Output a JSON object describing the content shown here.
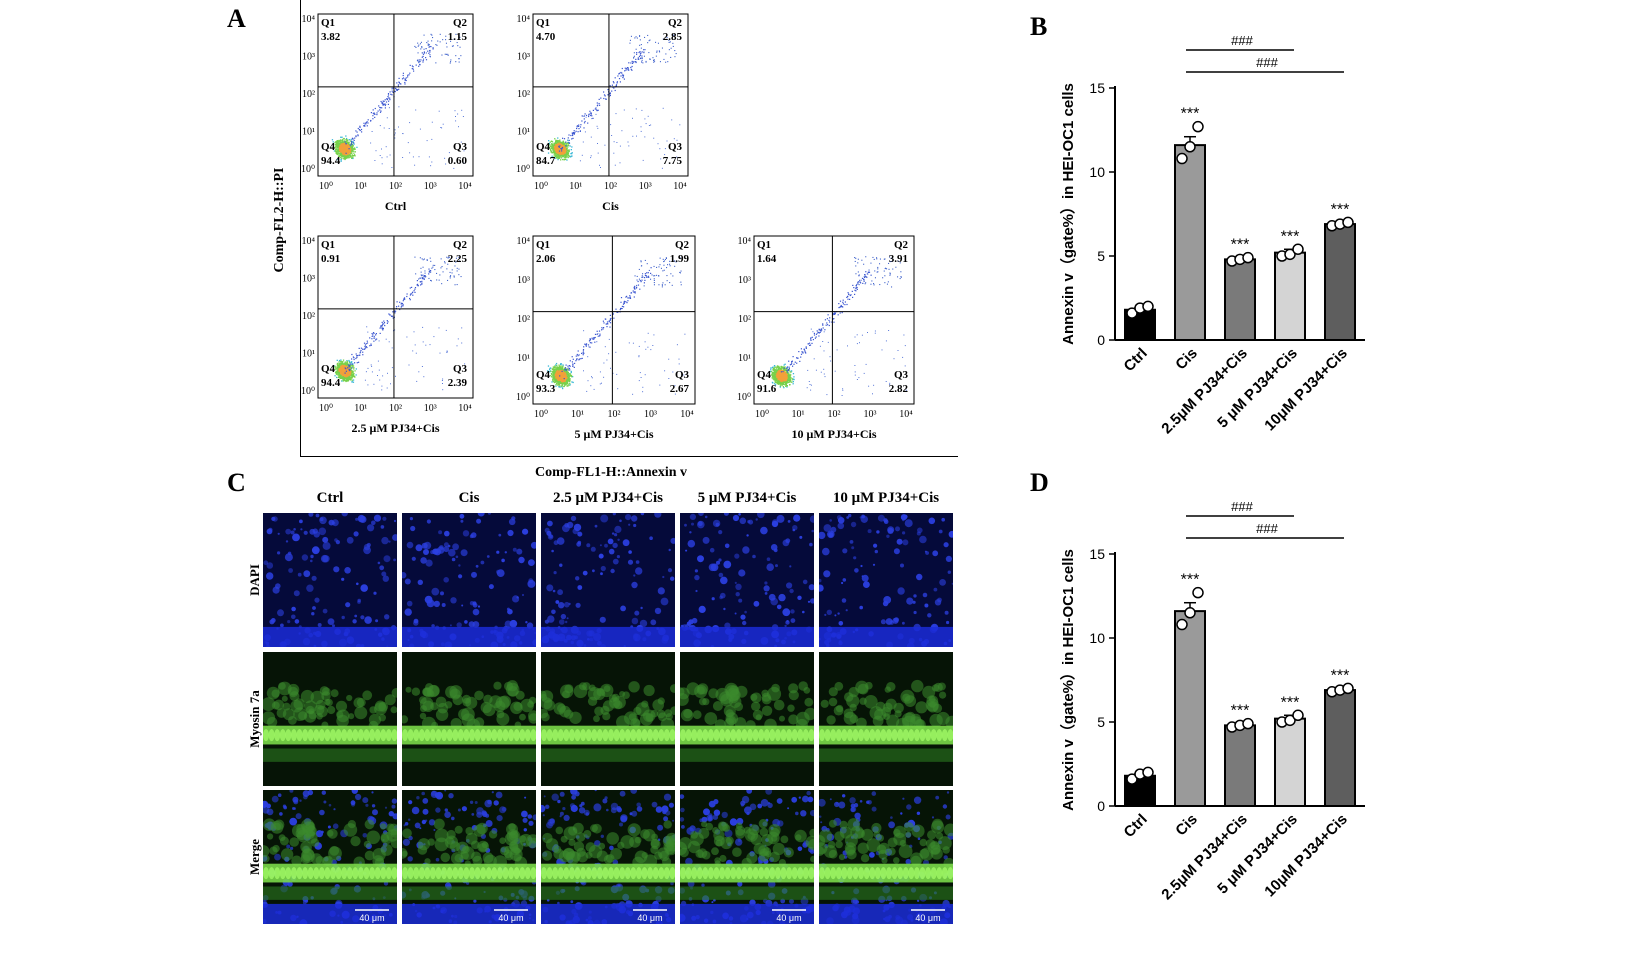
{
  "panels": {
    "a": "A",
    "b": "B",
    "c": "C",
    "d": "D"
  },
  "flow": {
    "y_axis_label": "Comp-FL2-H::PI",
    "x_axis_label": "Comp-FL1-H::Annexin v",
    "x_ticks": [
      "10⁰",
      "10¹",
      "10²",
      "10³",
      "10⁴"
    ],
    "y_ticks": [
      "10⁰",
      "10¹",
      "10²",
      "10³",
      "10⁴"
    ],
    "plots": [
      {
        "label": "Ctrl",
        "q1": "3.82",
        "q2": "1.15",
        "q3": "0.60",
        "q4": "94.4"
      },
      {
        "label": "Cis",
        "q1": "4.70",
        "q2": "2.85",
        "q3": "7.75",
        "q4": "84.7"
      },
      {
        "label": "2.5 μM PJ34+Cis",
        "q1": "0.91",
        "q2": "2.25",
        "q3": "2.39",
        "q4": "94.4"
      },
      {
        "label": "5 μM PJ34+Cis",
        "q1": "2.06",
        "q2": "1.99",
        "q3": "2.67",
        "q4": "93.3"
      },
      {
        "label": "10 μM PJ34+Cis",
        "q1": "1.64",
        "q2": "3.91",
        "q3": "2.82",
        "q4": "91.6"
      }
    ],
    "quadrant_names": [
      "Q1",
      "Q2",
      "Q3",
      "Q4"
    ]
  },
  "chart_data": [
    {
      "type": "bar",
      "panel": "B",
      "ylabel": "Annexin v（gate%）in HEI-OC1 cells",
      "ylim": [
        0,
        15
      ],
      "yticks": [
        0,
        5,
        10,
        15
      ],
      "categories": [
        "Ctrl",
        "Cis",
        "2.5μM PJ34+Cis",
        "5 μM PJ34+Cis",
        "10μM PJ34+Cis"
      ],
      "values": [
        1.8,
        11.6,
        4.8,
        5.2,
        6.9
      ],
      "points": [
        [
          1.6,
          1.9,
          2.0
        ],
        [
          10.8,
          11.5,
          12.7
        ],
        [
          4.7,
          4.8,
          4.9
        ],
        [
          5.0,
          5.1,
          5.4
        ],
        [
          6.8,
          6.9,
          7.0
        ]
      ],
      "errors": [
        0.1,
        0.5,
        0.1,
        0.2,
        0.1
      ],
      "colors": [
        "#000000",
        "#9a9a9a",
        "#7a7a7a",
        "#d4d4d4",
        "#5e5e5e"
      ],
      "significance": [
        "",
        "***",
        "***",
        "***",
        "***"
      ],
      "brackets": [
        {
          "from": 1,
          "to": 2,
          "label": "###"
        },
        {
          "from": 1,
          "to": 3,
          "label": "###"
        },
        {
          "from": 1,
          "to": 4,
          "label": "###"
        }
      ]
    },
    {
      "type": "bar",
      "panel": "D",
      "ylabel": "Annexin v（gate%）in HEI-OC1 cells",
      "ylim": [
        0,
        15
      ],
      "yticks": [
        0,
        5,
        10,
        15
      ],
      "categories": [
        "Ctrl",
        "Cis",
        "2.5μM PJ34+Cis",
        "5 μM PJ34+Cis",
        "10μM PJ34+Cis"
      ],
      "values": [
        1.8,
        11.6,
        4.8,
        5.2,
        6.9
      ],
      "points": [
        [
          1.6,
          1.9,
          2.0
        ],
        [
          10.8,
          11.5,
          12.7
        ],
        [
          4.7,
          4.8,
          4.9
        ],
        [
          5.0,
          5.1,
          5.4
        ],
        [
          6.8,
          6.9,
          7.0
        ]
      ],
      "errors": [
        0.1,
        0.5,
        0.1,
        0.2,
        0.1
      ],
      "colors": [
        "#000000",
        "#9a9a9a",
        "#7a7a7a",
        "#d4d4d4",
        "#5e5e5e"
      ],
      "significance": [
        "",
        "***",
        "***",
        "***",
        "***"
      ],
      "brackets": [
        {
          "from": 1,
          "to": 2,
          "label": "###"
        },
        {
          "from": 1,
          "to": 3,
          "label": "###"
        },
        {
          "from": 1,
          "to": 4,
          "label": "###"
        }
      ]
    }
  ],
  "micro": {
    "columns": [
      "Ctrl",
      "Cis",
      "2.5 μM PJ34+Cis",
      "5 μM PJ34+Cis",
      "10 μM PJ34+Cis"
    ],
    "rows": [
      "DAPI",
      "Myosin 7a",
      "Merge"
    ],
    "scale_bar": "40 μm"
  }
}
